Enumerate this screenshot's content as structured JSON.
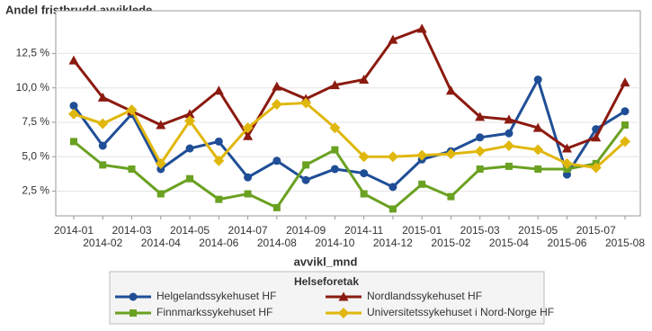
{
  "chart_data": {
    "type": "line",
    "title": "Andel fristbrudd avviklede",
    "x_label": "avvikl_mnd",
    "legend_title": "Helseforetak",
    "categories": [
      "2014-01",
      "2014-02",
      "2014-03",
      "2014-04",
      "2014-05",
      "2014-06",
      "2014-07",
      "2014-08",
      "2014-09",
      "2014-10",
      "2014-11",
      "2014-12",
      "2015-01",
      "2015-02",
      "2015-03",
      "2015-04",
      "2015-05",
      "2015-06",
      "2015-07",
      "2015-08"
    ],
    "series": [
      {
        "name": "Helgelandssykehuset HF",
        "color": "#1f4e96",
        "marker": "circle",
        "values": [
          8.7,
          5.8,
          8.1,
          4.1,
          5.6,
          6.1,
          3.5,
          4.7,
          3.3,
          4.1,
          3.8,
          2.8,
          4.8,
          5.4,
          6.4,
          6.7,
          10.6,
          3.7,
          7.0,
          8.3
        ]
      },
      {
        "name": "Finnmarkssykehuset HF",
        "color": "#6aa121",
        "marker": "square",
        "values": [
          6.1,
          4.4,
          4.1,
          2.3,
          3.4,
          1.9,
          2.3,
          1.3,
          4.4,
          5.5,
          2.3,
          1.2,
          3.0,
          2.1,
          4.1,
          4.3,
          4.1,
          4.1,
          4.5,
          7.3
        ]
      },
      {
        "name": "Nordlandssykehuset HF",
        "color": "#8b1a10",
        "marker": "triangle",
        "values": [
          12.0,
          9.3,
          8.3,
          7.3,
          8.1,
          9.8,
          6.5,
          10.1,
          9.2,
          10.2,
          10.6,
          13.5,
          14.3,
          9.8,
          7.9,
          7.7,
          7.1,
          5.6,
          6.4,
          10.4
        ]
      },
      {
        "name": "Universitetssykehuset i Nord-Norge HF",
        "color": "#e0b70d",
        "marker": "diamond",
        "values": [
          8.1,
          7.4,
          8.4,
          4.5,
          7.6,
          4.7,
          7.1,
          8.8,
          8.9,
          7.1,
          5.0,
          5.0,
          5.1,
          5.2,
          5.4,
          5.8,
          5.5,
          4.5,
          4.2,
          6.1
        ]
      }
    ],
    "ylim": [
      0.7,
      15.6
    ],
    "yticks": [
      {
        "value": 2.5,
        "label": "2,5 %"
      },
      {
        "value": 5,
        "label": "5,0 %"
      },
      {
        "value": 7.5,
        "label": "7,5 %"
      },
      {
        "value": 10,
        "label": "10,0 %"
      },
      {
        "value": 12.5,
        "label": "12,5 %"
      }
    ],
    "grid": true
  }
}
